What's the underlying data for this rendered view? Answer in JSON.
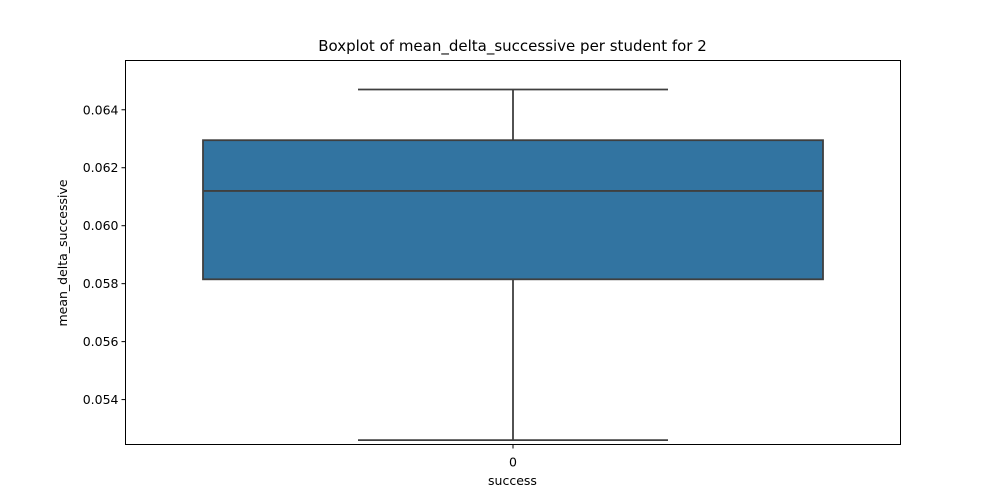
{
  "chart_data": {
    "type": "box",
    "title": "Boxplot of mean_delta_successive per student for 2",
    "xlabel": "success",
    "ylabel": "mean_delta_successive",
    "categories": [
      "0"
    ],
    "boxes": [
      {
        "category": "0",
        "whisker_low": 0.0526,
        "q1": 0.05815,
        "median": 0.0612,
        "q3": 0.06295,
        "whisker_high": 0.0647
      }
    ],
    "ylim": [
      0.05245,
      0.0657
    ],
    "yticks": [
      "0.054",
      "0.056",
      "0.058",
      "0.060",
      "0.062",
      "0.064"
    ],
    "ytick_values": [
      0.054,
      0.056,
      0.058,
      0.06,
      0.062,
      0.064
    ],
    "colors": {
      "box_fill": "#3274a1",
      "line": "#3f3f3f"
    },
    "grid": false,
    "legend": "none"
  }
}
